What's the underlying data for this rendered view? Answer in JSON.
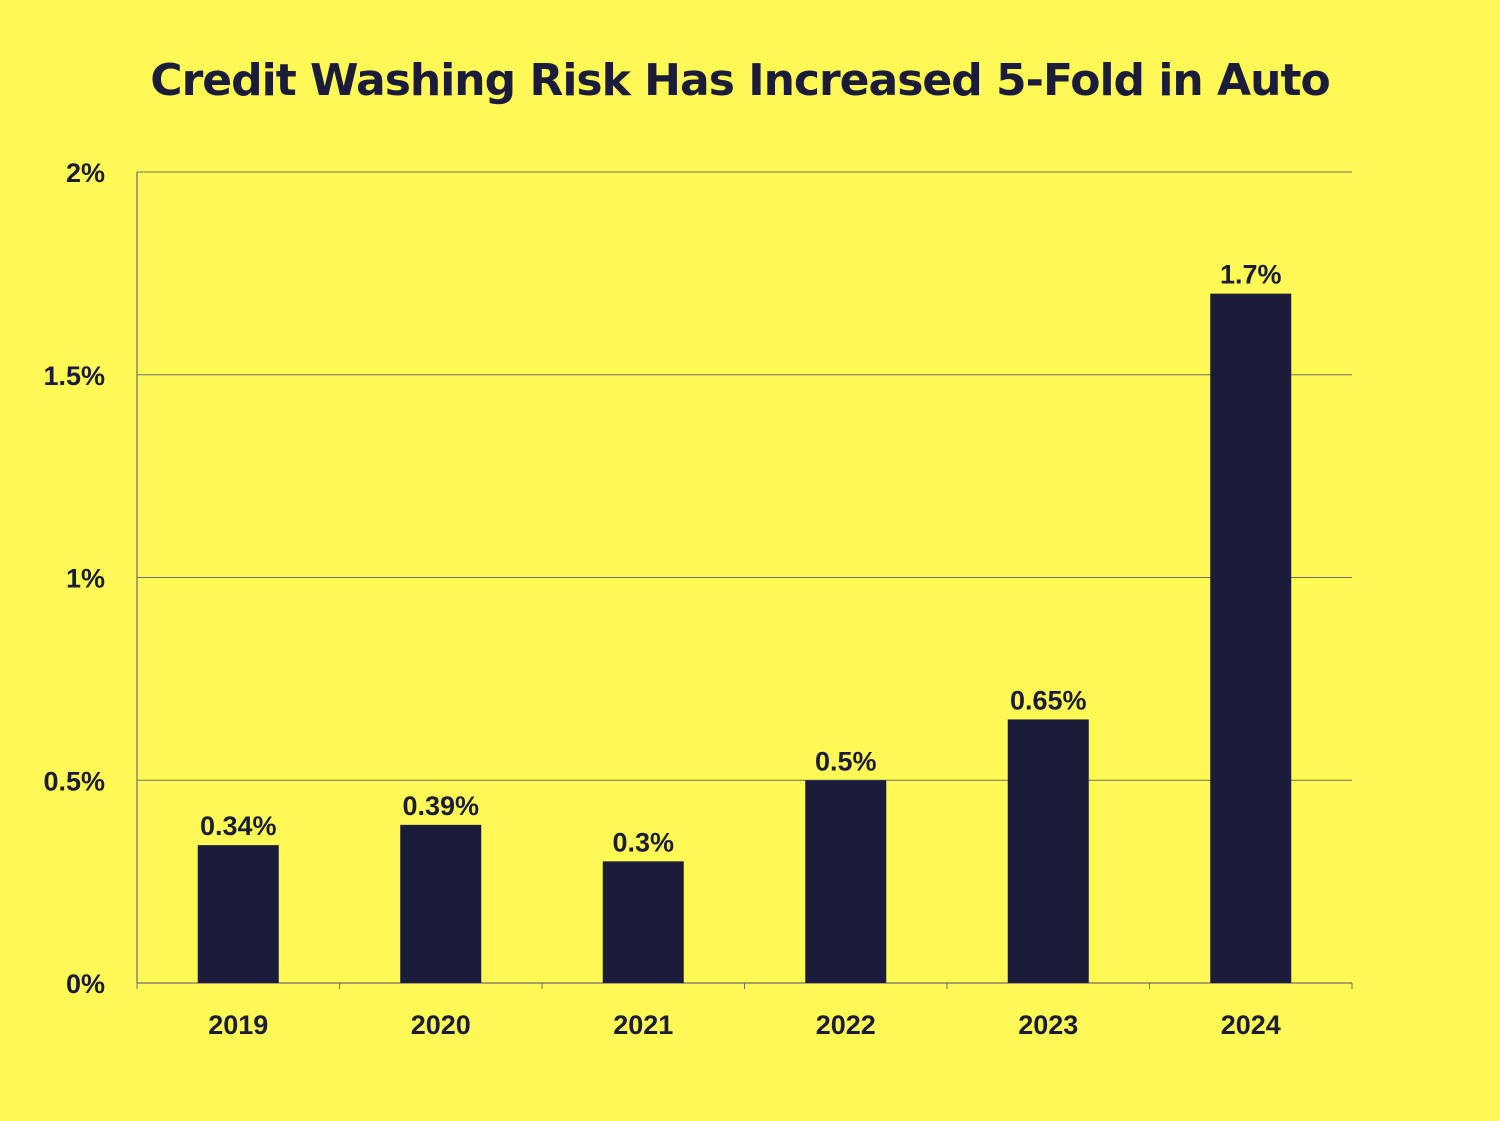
{
  "colors": {
    "background": "#FFF955",
    "bar": "#1B1B3A",
    "text": "#1B1B3A",
    "gridline": "#6E6E6E"
  },
  "chart_data": {
    "type": "bar",
    "title": "Credit Washing Risk Has Increased 5-Fold in Auto",
    "xlabel": "",
    "ylabel": "",
    "categories": [
      "2019",
      "2020",
      "2021",
      "2022",
      "2023",
      "2024"
    ],
    "values": [
      0.34,
      0.39,
      0.3,
      0.5,
      0.65,
      1.7
    ],
    "value_labels": [
      "0.34%",
      "0.39%",
      "0.3%",
      "0.5%",
      "0.65%",
      "1.7%"
    ],
    "ylim": [
      0,
      2
    ],
    "y_ticks": [
      0,
      0.5,
      1,
      1.5,
      2
    ],
    "y_tick_labels": [
      "0%",
      "0.5%",
      "1%",
      "1.5%",
      "2%"
    ],
    "grid": true,
    "legend": "none"
  }
}
